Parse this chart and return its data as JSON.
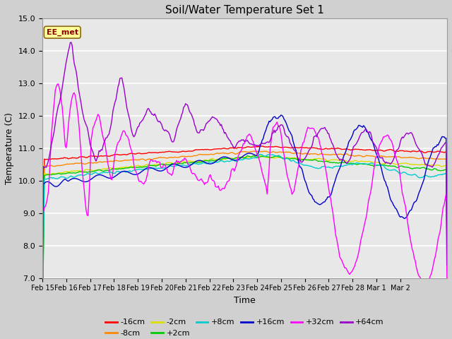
{
  "title": "Soil/Water Temperature Set 1",
  "xlabel": "Time",
  "ylabel": "Temperature (C)",
  "ylim": [
    7.0,
    15.0
  ],
  "yticks": [
    7.0,
    8.0,
    9.0,
    10.0,
    11.0,
    12.0,
    13.0,
    14.0,
    15.0
  ],
  "fig_bg": "#d0d0d0",
  "plot_bg": "#e8e8e8",
  "annotation_label": "EE_met",
  "annotation_color": "#8B0000",
  "annotation_bg": "#ffff99",
  "annotation_border": "#8B6914",
  "colors": {
    "-16cm": "#ff0000",
    "-8cm": "#ff8800",
    "-2cm": "#dddd00",
    "+2cm": "#00cc00",
    "+8cm": "#00cccc",
    "+16cm": "#0000cc",
    "+32cm": "#ff00ff",
    "+64cm": "#9900cc"
  },
  "date_labels": [
    "Feb 15",
    "Feb 16",
    "Feb 17",
    "Feb 18",
    "Feb 19",
    "Feb 20",
    "Feb 21",
    "Feb 22",
    "Feb 23",
    "Feb 24",
    "Feb 25",
    "Feb 26",
    "Feb 27",
    "Feb 28",
    "Mar 1",
    "Mar 2"
  ],
  "date_tick_positions": [
    0,
    24,
    48,
    72,
    96,
    120,
    144,
    168,
    192,
    216,
    240,
    264,
    288,
    312,
    336,
    360
  ],
  "n_points": 408
}
